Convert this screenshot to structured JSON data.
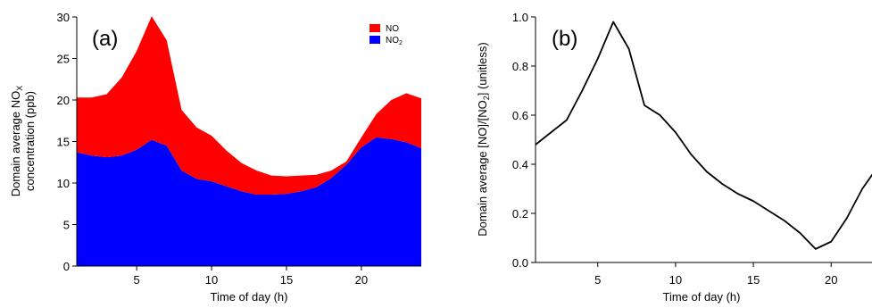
{
  "chart_data": [
    {
      "panel_label": "(a)",
      "type": "area",
      "stacked": true,
      "x": [
        1,
        2,
        3,
        4,
        5,
        6,
        7,
        8,
        9,
        10,
        11,
        12,
        13,
        14,
        15,
        16,
        17,
        18,
        19,
        20,
        21,
        22,
        23,
        24
      ],
      "series": [
        {
          "name": "NO2",
          "legend_text": "NO",
          "legend_sub": "2",
          "color": "#0000ff",
          "values": [
            13.7,
            13.3,
            13.1,
            13.3,
            14.0,
            15.2,
            14.5,
            11.5,
            10.5,
            10.2,
            9.6,
            9.0,
            8.6,
            8.6,
            8.7,
            9.0,
            9.5,
            10.6,
            12.2,
            14.3,
            15.5,
            15.3,
            14.9,
            14.2
          ]
        },
        {
          "name": "NO",
          "legend_text": "NO",
          "legend_sub": "",
          "color": "#ff0000",
          "values": [
            6.6,
            7.0,
            7.6,
            9.4,
            11.9,
            14.9,
            12.7,
            7.3,
            6.2,
            5.5,
            4.3,
            3.4,
            2.9,
            2.3,
            2.1,
            1.9,
            1.5,
            0.9,
            0.4,
            1.2,
            2.8,
            4.7,
            5.9,
            6.0
          ]
        }
      ],
      "xlabel": "Time of day (h)",
      "ylabel_line1_text": "Domain average NO",
      "ylabel_line1_sub": "X",
      "ylabel_line2": "concentration (ppb)",
      "xlim": [
        1,
        24
      ],
      "ylim": [
        0,
        30
      ],
      "xticks": [
        5,
        10,
        15,
        20
      ],
      "yticks": [
        0,
        5,
        10,
        15,
        20,
        25,
        30
      ],
      "grid": false,
      "legend_position": "top-right"
    },
    {
      "panel_label": "(b)",
      "type": "line",
      "x": [
        1,
        2,
        3,
        4,
        5,
        6,
        7,
        8,
        9,
        10,
        11,
        12,
        13,
        14,
        15,
        16,
        17,
        18,
        19,
        20,
        21,
        22,
        23,
        24
      ],
      "series": [
        {
          "name": "[NO]/[NO2]",
          "color": "#000000",
          "values": [
            0.48,
            0.53,
            0.58,
            0.7,
            0.83,
            0.98,
            0.87,
            0.64,
            0.6,
            0.53,
            0.44,
            0.37,
            0.32,
            0.28,
            0.25,
            0.21,
            0.17,
            0.12,
            0.055,
            0.085,
            0.18,
            0.3,
            0.39,
            0.41
          ]
        }
      ],
      "xlabel": "Time of day (h)",
      "ylabel_parts": [
        "Domain average [NO]/[NO",
        "2",
        "] (unitless)"
      ],
      "xlim": [
        1,
        24
      ],
      "ylim": [
        0,
        1.0
      ],
      "xticks": [
        5,
        10,
        15,
        20
      ],
      "yticks": [
        0.0,
        0.2,
        0.4,
        0.6,
        0.8,
        1.0
      ],
      "ytick_labels": [
        "0.0",
        "0.2",
        "0.4",
        "0.6",
        "0.8",
        "1.0"
      ],
      "grid": false
    }
  ]
}
